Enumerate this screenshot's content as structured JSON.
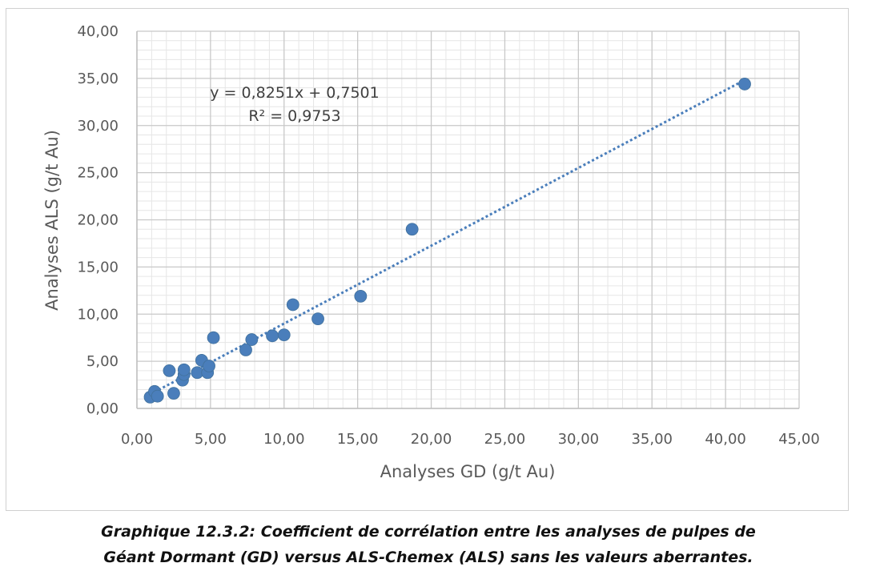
{
  "chart_data": {
    "type": "scatter",
    "xlabel": "Analyses GD (g/t Au)",
    "ylabel": "Analyses ALS (g/t Au)",
    "xlim": [
      0,
      45
    ],
    "ylim": [
      0,
      40
    ],
    "x_ticks": [
      "0,00",
      "5,00",
      "10,00",
      "15,00",
      "20,00",
      "25,00",
      "30,00",
      "35,00",
      "40,00",
      "45,00"
    ],
    "y_ticks": [
      "0,00",
      "5,00",
      "10,00",
      "15,00",
      "20,00",
      "25,00",
      "30,00",
      "35,00",
      "40,00"
    ],
    "grid": "major and minor",
    "marker_color": "#4a7ebb",
    "trendline": {
      "type": "linear",
      "slope": 0.8251,
      "intercept": 0.7501,
      "equation": "y = 0,8251x + 0,7501",
      "r_squared": "R² = 0,9753",
      "style": "dotted",
      "color": "#4a7ebb"
    },
    "points": [
      {
        "x": 0.9,
        "y": 1.2
      },
      {
        "x": 1.2,
        "y": 1.8
      },
      {
        "x": 1.4,
        "y": 1.3
      },
      {
        "x": 2.2,
        "y": 4.0
      },
      {
        "x": 2.5,
        "y": 1.6
      },
      {
        "x": 3.1,
        "y": 3.0
      },
      {
        "x": 3.2,
        "y": 3.6
      },
      {
        "x": 3.2,
        "y": 4.1
      },
      {
        "x": 4.1,
        "y": 3.8
      },
      {
        "x": 4.4,
        "y": 5.1
      },
      {
        "x": 4.8,
        "y": 3.8
      },
      {
        "x": 4.9,
        "y": 4.5
      },
      {
        "x": 5.2,
        "y": 7.5
      },
      {
        "x": 7.4,
        "y": 6.2
      },
      {
        "x": 7.8,
        "y": 7.3
      },
      {
        "x": 9.2,
        "y": 7.7
      },
      {
        "x": 10.0,
        "y": 7.8
      },
      {
        "x": 10.6,
        "y": 11.0
      },
      {
        "x": 12.3,
        "y": 9.5
      },
      {
        "x": 15.2,
        "y": 11.9
      },
      {
        "x": 18.7,
        "y": 19.0
      },
      {
        "x": 41.3,
        "y": 34.4
      }
    ]
  },
  "caption": {
    "line1": "Graphique 12.3.2: Coefficient de corrélation entre les analyses de pulpes de",
    "line2": "Géant Dormant (GD) versus ALS-Chemex (ALS) sans les valeurs aberrantes."
  }
}
